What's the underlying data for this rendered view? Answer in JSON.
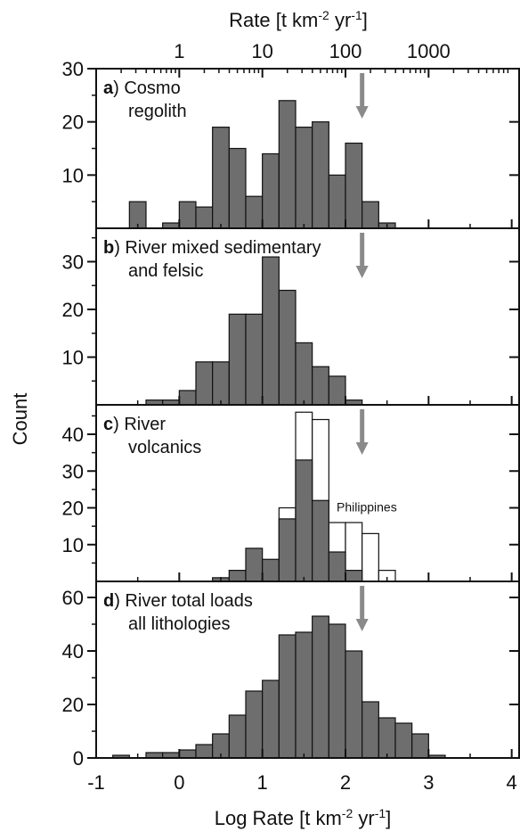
{
  "figure": {
    "top_axis_label": "Rate [t km",
    "top_axis_sup1": "-2",
    "top_axis_mid": " yr",
    "top_axis_sup2": "-1",
    "top_axis_end": "]",
    "bottom_axis_label": "Log Rate [t km",
    "bottom_axis_sup1": "-2",
    "bottom_axis_mid": " yr",
    "bottom_axis_sup2": "-1",
    "bottom_axis_end": "]",
    "ylabel": "Count",
    "top_ticks": [
      {
        "label": "1",
        "log": 0
      },
      {
        "label": "10",
        "log": 1
      },
      {
        "label": "100",
        "log": 2
      },
      {
        "label": "1000",
        "log": 3
      }
    ],
    "bottom_ticks": [
      "-1",
      "0",
      "1",
      "2",
      "3",
      "4"
    ]
  },
  "chart_data": [
    {
      "type": "bar",
      "panel_letter": "a)",
      "title_lines": [
        " Cosmo",
        "regolith"
      ],
      "xlim": [
        -1,
        4.1
      ],
      "ylim": [
        0,
        30
      ],
      "yticks": [
        10,
        20,
        30
      ],
      "bin_width": 0.2,
      "bins_left": [
        -0.6,
        -0.4,
        -0.2,
        0.0,
        0.2,
        0.4,
        0.6,
        0.8,
        1.0,
        1.2,
        1.4,
        1.6,
        1.8,
        2.0,
        2.2,
        2.4
      ],
      "series": [
        {
          "values": [
            5,
            0,
            1,
            5,
            4,
            19,
            15,
            6,
            14,
            24,
            19,
            20,
            10,
            16,
            5,
            1
          ],
          "color": "#6e6e6e"
        }
      ],
      "arrow_at": 2.2
    },
    {
      "type": "bar",
      "panel_letter": "b)",
      "title_lines": [
        " River mixed sedimentary",
        "and felsic"
      ],
      "xlim": [
        -1,
        4.1
      ],
      "ylim": [
        0,
        37
      ],
      "yticks": [
        10,
        20,
        30
      ],
      "bin_width": 0.2,
      "bins_left": [
        -0.4,
        -0.2,
        0.0,
        0.2,
        0.4,
        0.6,
        0.8,
        1.0,
        1.2,
        1.4,
        1.6,
        1.8,
        2.0
      ],
      "series": [
        {
          "values": [
            1,
            1,
            3,
            9,
            9,
            19,
            19,
            31,
            24,
            13,
            8,
            6,
            1
          ],
          "color": "#6e6e6e"
        }
      ],
      "arrow_at": 2.2
    },
    {
      "type": "bar",
      "panel_letter": "c)",
      "title_lines": [
        " River",
        "volcanics"
      ],
      "xlim": [
        -1,
        4.1
      ],
      "ylim": [
        0,
        48
      ],
      "yticks": [
        10,
        20,
        30,
        40
      ],
      "bin_width": 0.2,
      "bins_left": [
        0.4,
        0.6,
        0.8,
        1.0,
        1.2,
        1.4,
        1.6,
        1.8,
        2.0,
        2.2,
        2.4,
        2.6
      ],
      "series": [
        {
          "name": "Philippines",
          "values": [
            0,
            0,
            0,
            0,
            20,
            46,
            44,
            16,
            16,
            13,
            3,
            0
          ],
          "color": "#ffffff"
        },
        {
          "values": [
            1,
            3,
            9,
            6,
            17,
            33,
            22,
            8,
            3,
            0,
            0,
            0
          ],
          "color": "#6e6e6e"
        }
      ],
      "annotation": "Philippines",
      "arrow_at": 2.2
    },
    {
      "type": "bar",
      "panel_letter": "d)",
      "title_lines": [
        " River total loads",
        "all lithologies"
      ],
      "xlim": [
        -1,
        4.1
      ],
      "ylim": [
        0,
        66
      ],
      "yticks": [
        0,
        20,
        40,
        60
      ],
      "bin_width": 0.2,
      "bins_left": [
        -0.8,
        -0.6,
        -0.4,
        -0.2,
        0.0,
        0.2,
        0.4,
        0.6,
        0.8,
        1.0,
        1.2,
        1.4,
        1.6,
        1.8,
        2.0,
        2.2,
        2.4,
        2.6,
        2.8,
        3.0
      ],
      "series": [
        {
          "values": [
            1,
            0,
            2,
            2,
            3,
            5,
            9,
            16,
            25,
            29,
            46,
            47,
            53,
            50,
            40,
            21,
            15,
            13,
            9,
            1
          ],
          "color": "#6e6e6e"
        }
      ],
      "arrow_at": 2.2
    }
  ]
}
